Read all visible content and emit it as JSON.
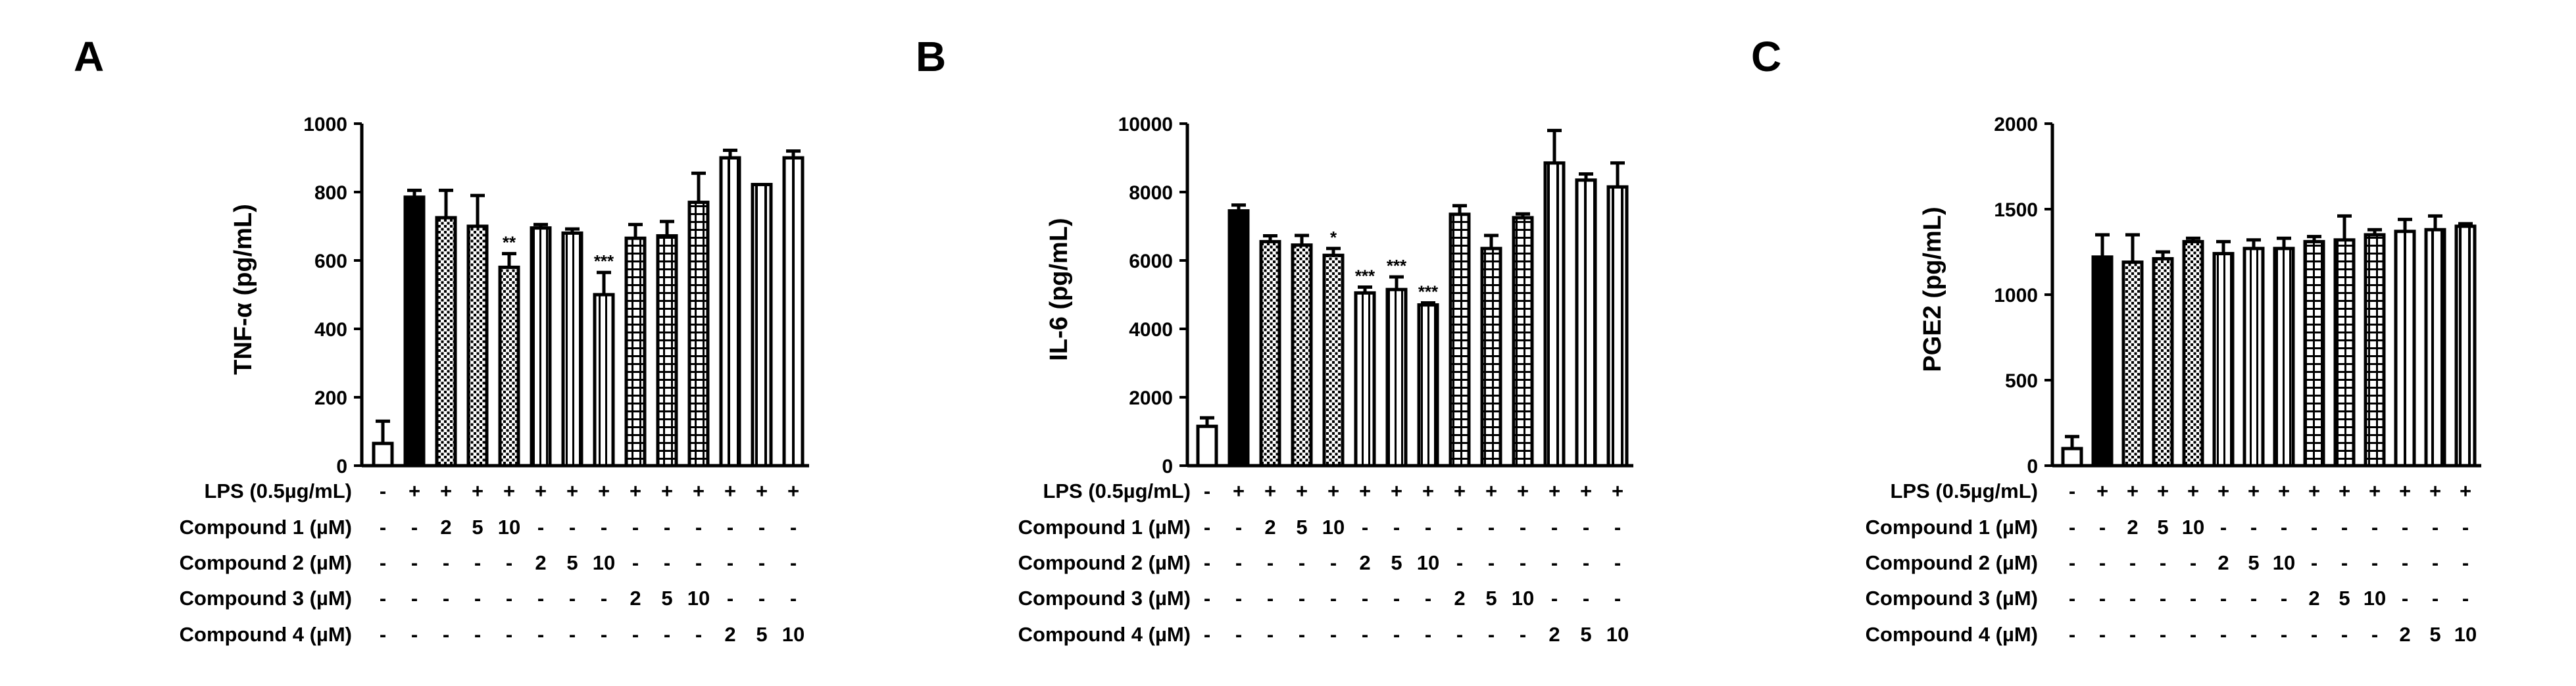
{
  "panels": [
    {
      "letter": "A",
      "chart_data": {
        "type": "bar",
        "ylabel": "TNF-α (pg/mL)",
        "ylim": [
          0,
          1000
        ],
        "yticks": [
          0,
          200,
          400,
          600,
          800,
          1000
        ],
        "values": [
          65,
          785,
          725,
          700,
          580,
          695,
          680,
          500,
          665,
          672,
          770,
          900,
          822,
          900
        ],
        "errors": [
          65,
          20,
          80,
          90,
          40,
          10,
          12,
          65,
          40,
          42,
          85,
          22,
          0,
          20
        ],
        "significance": [
          "",
          "",
          "",
          "",
          "**",
          "",
          "",
          "***",
          "",
          "",
          "",
          "",
          "",
          ""
        ]
      }
    },
    {
      "letter": "B",
      "chart_data": {
        "type": "bar",
        "ylabel": "IL-6 (pg/mL)",
        "ylim": [
          0,
          10000
        ],
        "yticks": [
          0,
          2000,
          4000,
          6000,
          8000,
          10000
        ],
        "values": [
          1150,
          7450,
          6550,
          6450,
          6150,
          5050,
          5150,
          4700,
          7350,
          6350,
          7250,
          8850,
          8350,
          8150
        ],
        "errors": [
          250,
          170,
          170,
          280,
          200,
          170,
          370,
          60,
          250,
          380,
          110,
          950,
          180,
          700
        ],
        "significance": [
          "",
          "",
          "",
          "",
          "*",
          "***",
          "***",
          "***",
          "",
          "",
          "",
          "",
          "",
          ""
        ]
      }
    },
    {
      "letter": "C",
      "chart_data": {
        "type": "bar",
        "ylabel": "PGE2 (pg/mL)",
        "ylim": [
          0,
          2000
        ],
        "yticks": [
          0,
          500,
          1000,
          1500,
          2000
        ],
        "values": [
          100,
          1220,
          1190,
          1210,
          1310,
          1240,
          1270,
          1270,
          1310,
          1320,
          1350,
          1370,
          1380,
          1400
        ],
        "errors": [
          70,
          130,
          160,
          40,
          20,
          70,
          50,
          60,
          30,
          140,
          30,
          70,
          80,
          15
        ],
        "significance": [
          "",
          "",
          "",
          "",
          "",
          "",
          "",
          "",
          "",
          "",
          "",
          "",
          "",
          ""
        ]
      }
    }
  ],
  "treatment_table": {
    "rows": [
      {
        "label": "LPS (0.5µg/mL)",
        "cells": [
          "-",
          "+",
          "+",
          "+",
          "+",
          "+",
          "+",
          "+",
          "+",
          "+",
          "+",
          "+",
          "+",
          "+"
        ]
      },
      {
        "label": "Compound 1 (µM)",
        "cells": [
          "-",
          "-",
          "2",
          "5",
          "10",
          "-",
          "-",
          "-",
          "-",
          "-",
          "-",
          "-",
          "-",
          "-"
        ]
      },
      {
        "label": "Compound 2 (µM)",
        "cells": [
          "-",
          "-",
          "-",
          "-",
          "-",
          "2",
          "5",
          "10",
          "-",
          "-",
          "-",
          "-",
          "-",
          "-"
        ]
      },
      {
        "label": "Compound 3 (µM)",
        "cells": [
          "-",
          "-",
          "-",
          "-",
          "-",
          "-",
          "-",
          "-",
          "2",
          "5",
          "10",
          "-",
          "-",
          "-"
        ]
      },
      {
        "label": "Compound 4 (µM)",
        "cells": [
          "-",
          "-",
          "-",
          "-",
          "-",
          "-",
          "-",
          "-",
          "-",
          "-",
          "-",
          "2",
          "5",
          "10"
        ]
      }
    ]
  },
  "bar_fills": [
    "open",
    "solid",
    "dots",
    "dots",
    "dots",
    "vlines",
    "vlines",
    "vlines",
    "grid",
    "grid",
    "grid",
    "wide-vlines",
    "wide-vlines",
    "wide-vlines"
  ],
  "colors": {
    "ink": "#000000",
    "background": "#ffffff"
  }
}
